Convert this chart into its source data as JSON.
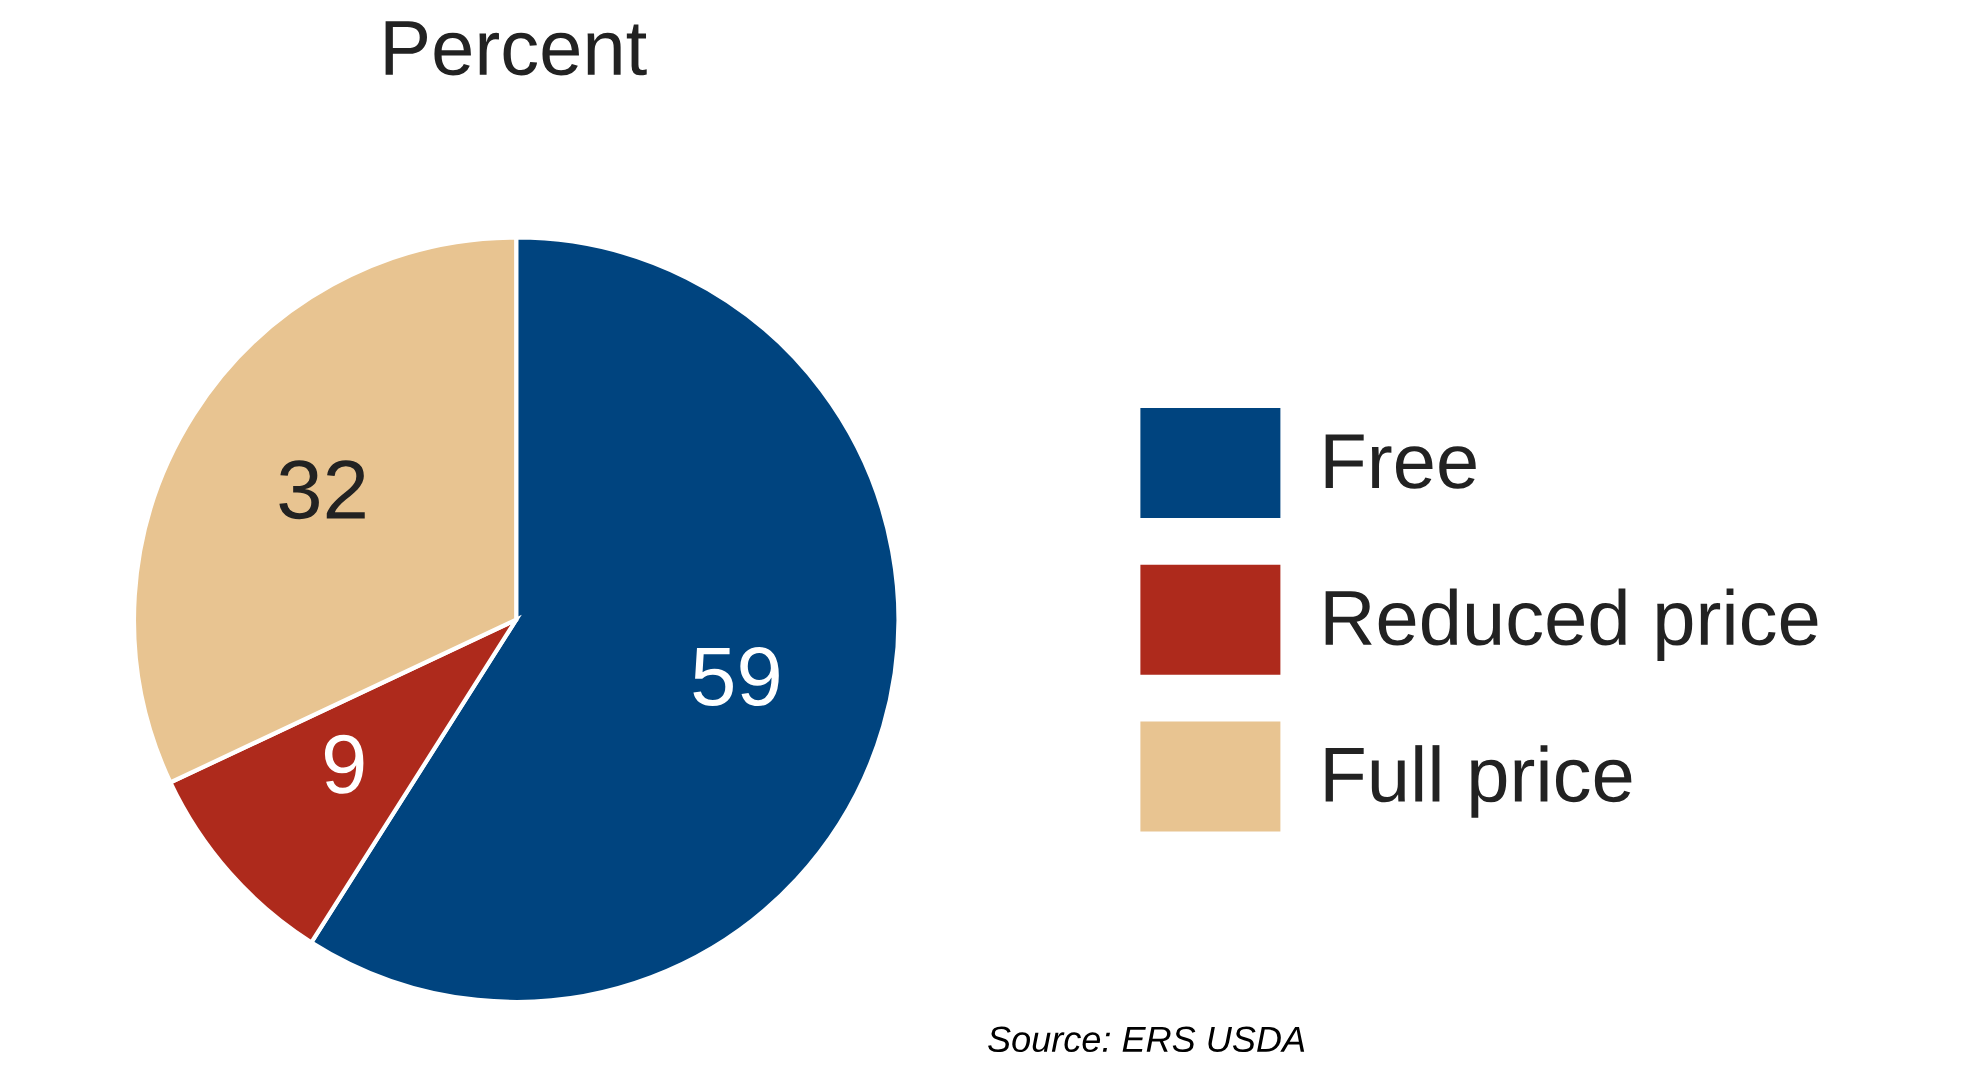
{
  "chart_data": {
    "type": "pie",
    "title": "Percent",
    "categories": [
      "Free",
      "Reduced price",
      "Full price"
    ],
    "values": [
      59,
      9,
      32
    ],
    "colors": [
      "#00447f",
      "#ae2a1c",
      "#e8c491"
    ],
    "data_labels": true,
    "legend": "right",
    "annotations": [
      "Source: ERS USDA"
    ]
  }
}
